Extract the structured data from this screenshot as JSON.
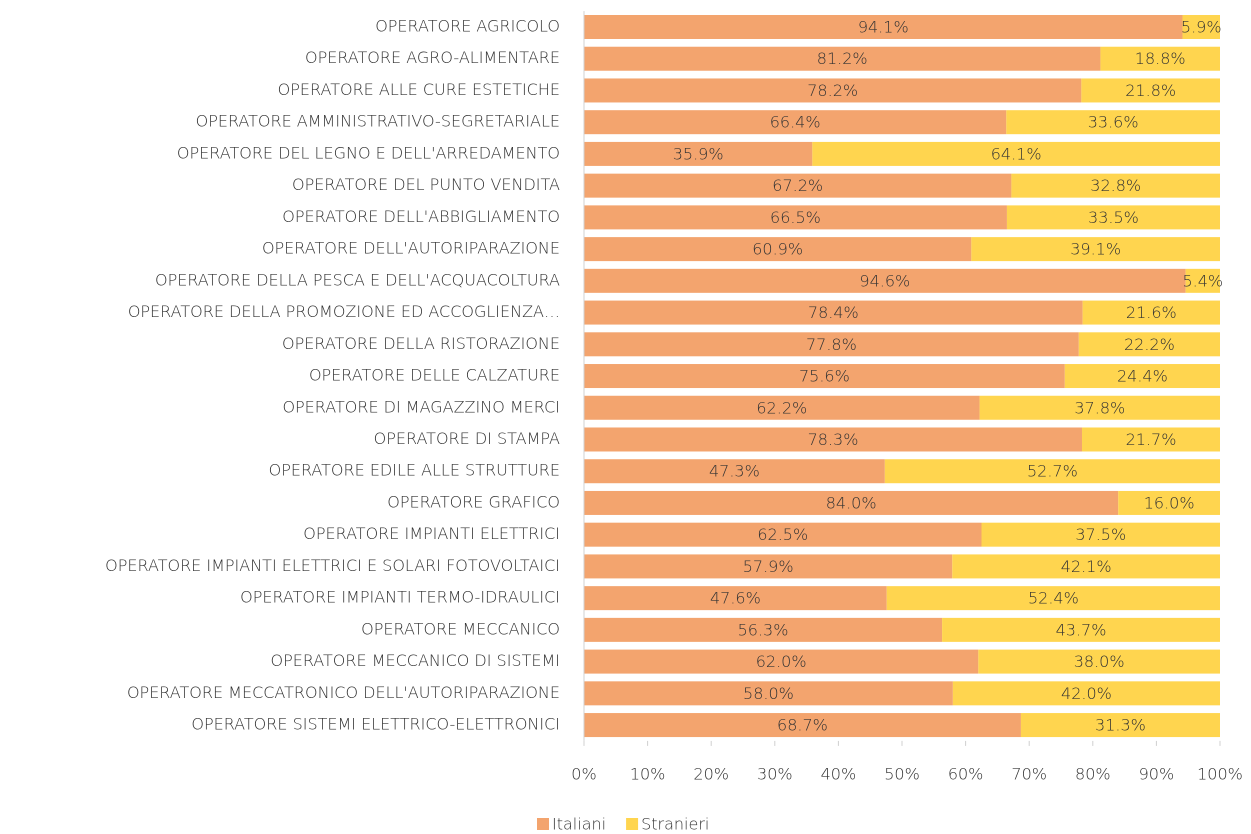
{
  "chart_data": {
    "type": "stacked-bar-horizontal",
    "categories": [
      "OPERATORE AGRICOLO",
      "OPERATORE AGRO-ALIMENTARE",
      "OPERATORE ALLE CURE ESTETICHE",
      "OPERATORE AMMINISTRATIVO-SEGRETARIALE",
      "OPERATORE DEL LEGNO E DELL'ARREDAMENTO",
      "OPERATORE DEL PUNTO VENDITA",
      "OPERATORE DELL'ABBIGLIAMENTO",
      "OPERATORE DELL'AUTORIPARAZIONE",
      "OPERATORE DELLA PESCA E DELL'ACQUACOLTURA",
      "OPERATORE DELLA PROMOZIONE ED ACCOGLIENZA…",
      "OPERATORE DELLA RISTORAZIONE",
      "OPERATORE DELLE CALZATURE",
      "OPERATORE DI MAGAZZINO MERCI",
      "OPERATORE DI STAMPA",
      "OPERATORE EDILE ALLE STRUTTURE",
      "OPERATORE GRAFICO",
      "OPERATORE IMPIANTI ELETTRICI",
      "OPERATORE IMPIANTI ELETTRICI E SOLARI FOTOVOLTAICI",
      "OPERATORE IMPIANTI TERMO-IDRAULICI",
      "OPERATORE MECCANICO",
      "OPERATORE MECCANICO DI SISTEMI",
      "OPERATORE MECCATRONICO DELL'AUTORIPARAZIONE",
      "OPERATORE SISTEMI ELETTRICO-ELETTRONICI"
    ],
    "series": [
      {
        "name": "Italiani",
        "color": "#f3a46e",
        "values": [
          94.1,
          81.2,
          78.2,
          66.4,
          35.9,
          67.2,
          66.5,
          60.9,
          94.6,
          78.4,
          77.8,
          75.6,
          62.2,
          78.3,
          47.3,
          84.0,
          62.5,
          57.9,
          47.6,
          56.3,
          62.0,
          58.0,
          68.7
        ],
        "value_labels": [
          "94.1%",
          "81.2%",
          "78.2%",
          "66.4%",
          "35.9%",
          "67.2%",
          "66.5%",
          "60.9%",
          "94.6%",
          "78.4%",
          "77.8%",
          "75.6%",
          "62.2%",
          "78.3%",
          "47.3%",
          "84.0%",
          "62.5%",
          "57.9%",
          "47.6%",
          "56.3%",
          "62.0%",
          "58.0%",
          "68.7%"
        ]
      },
      {
        "name": "Stranieri",
        "color": "#ffd54f",
        "values": [
          5.9,
          18.8,
          21.8,
          33.6,
          64.1,
          32.8,
          33.5,
          39.1,
          5.4,
          21.6,
          22.2,
          24.4,
          37.8,
          21.7,
          52.7,
          16.0,
          37.5,
          42.1,
          52.4,
          43.7,
          38.0,
          42.0,
          31.3
        ],
        "value_labels": [
          "5.9%",
          "18.8%",
          "21.8%",
          "33.6%",
          "64.1%",
          "32.8%",
          "33.5%",
          "39.1%",
          "5.4%",
          "21.6%",
          "22.2%",
          "24.4%",
          "37.8%",
          "21.7%",
          "52.7%",
          "16.0%",
          "37.5%",
          "42.1%",
          "52.4%",
          "43.7%",
          "38.0%",
          "42.0%",
          "31.3%"
        ]
      }
    ],
    "xlim": [
      0,
      100
    ],
    "xticks": [
      {
        "value": 0,
        "label": "0%"
      },
      {
        "value": 10,
        "label": "10%"
      },
      {
        "value": 20,
        "label": "20%"
      },
      {
        "value": 30,
        "label": "30%"
      },
      {
        "value": 40,
        "label": "40%"
      },
      {
        "value": 50,
        "label": "50%"
      },
      {
        "value": 60,
        "label": "60%"
      },
      {
        "value": 70,
        "label": "70%"
      },
      {
        "value": 80,
        "label": "80%"
      },
      {
        "value": 90,
        "label": "90%"
      },
      {
        "value": 100,
        "label": "100%"
      }
    ],
    "legend": "bottom"
  }
}
